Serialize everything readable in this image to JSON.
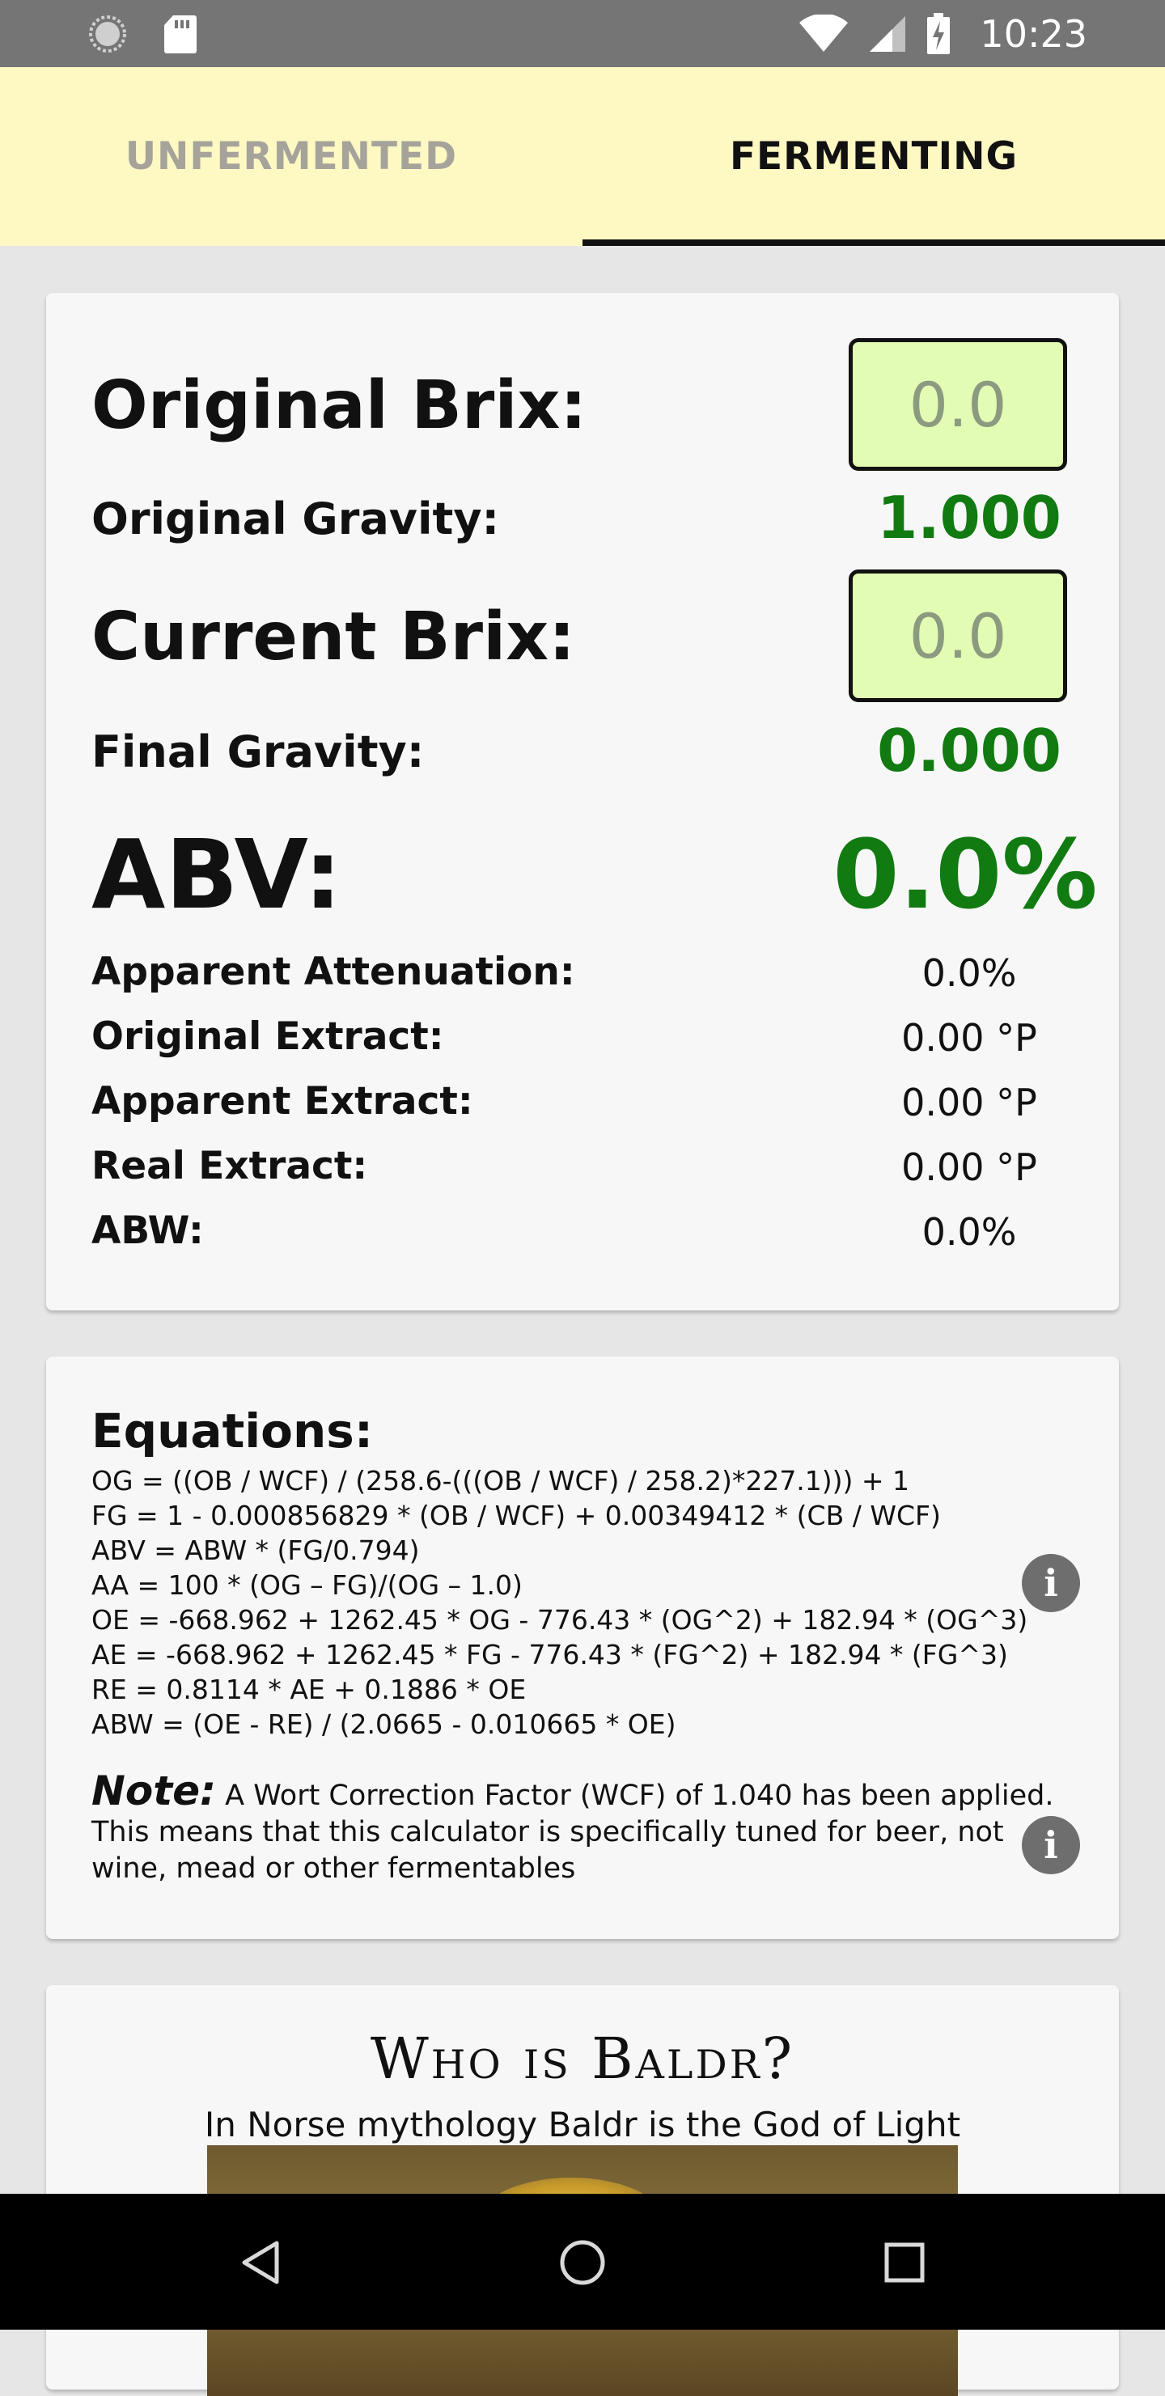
{
  "status_bar": {
    "time": "10:23",
    "icons": [
      "circle-status-icon",
      "sd-card-icon",
      "wifi-icon",
      "signal-icon",
      "battery-charging-icon"
    ]
  },
  "tabs": [
    {
      "label": "UNFERMENTED",
      "selected": false
    },
    {
      "label": "FERMENTING",
      "selected": true
    }
  ],
  "calculator": {
    "original_brix_label": "Original Brix:",
    "original_brix_placeholder": "0.0",
    "original_gravity_label": "Original Gravity:",
    "original_gravity_value": "1.000",
    "current_brix_label": "Current Brix:",
    "current_brix_placeholder": "0.0",
    "final_gravity_label": "Final Gravity:",
    "final_gravity_value": "0.000",
    "abv_label": "ABV:",
    "abv_value": "0.0%",
    "apparent_attenuation_label": "Apparent Attenuation:",
    "apparent_attenuation_value": "0.0%",
    "original_extract_label": "Original Extract:",
    "original_extract_value": "0.00 °P",
    "apparent_extract_label": "Apparent Extract:",
    "apparent_extract_value": "0.00 °P",
    "real_extract_label": "Real Extract:",
    "real_extract_value": "0.00 °P",
    "abw_label": "ABW:",
    "abw_value": "0.0%"
  },
  "equations": {
    "title": "Equations:",
    "lines": [
      "OG = ((OB / WCF) / (258.6-(((OB / WCF) / 258.2)*227.1))) + 1",
      "FG = 1 - 0.000856829 * (OB / WCF) + 0.00349412 * (CB / WCF)",
      "ABV = ABW * (FG/0.794)",
      "AA = 100 * (OG – FG)/(OG – 1.0)",
      "OE = -668.962 + 1262.45 * OG - 776.43 * (OG^2) + 182.94 * (OG^3)",
      "AE = -668.962 + 1262.45 * FG - 776.43 * (FG^2) + 182.94 * (FG^3)",
      "RE = 0.8114 * AE + 0.1886 * OE",
      "ABW = (OE - RE) / (2.0665 - 0.010665 * OE)"
    ],
    "note_label": "Note:",
    "note_text": "A Wort Correction Factor (WCF) of 1.040 has been applied. This means that this calculator is specifically tuned for beer, not wine, mead or other fermentables",
    "info_glyph": "i"
  },
  "baldr": {
    "title": "Who is Baldr?",
    "subtitle": "In Norse mythology Baldr is the God of Light"
  },
  "colors": {
    "tab_bar": "#fef9c3",
    "value_green": "#117a11",
    "input_bg": "#e2fcb4"
  }
}
